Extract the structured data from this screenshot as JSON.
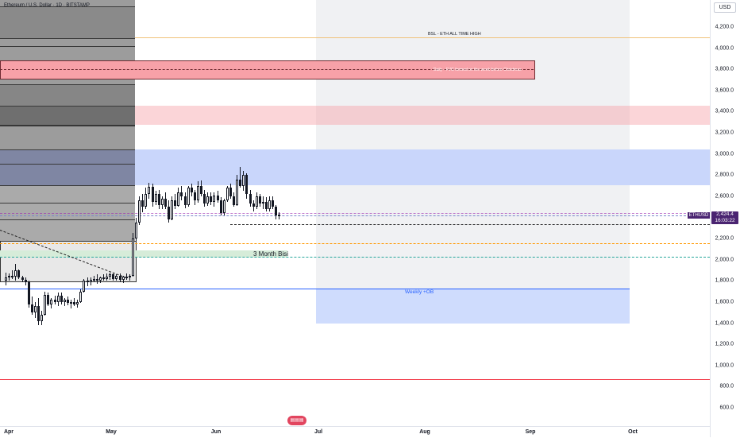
{
  "header": {
    "title": "Ethereum / U.S. Dollar · 1D · BITSTAMP"
  },
  "price_axis": {
    "currency_label": "USD",
    "ticks": [
      "4,200.0",
      "4,000.0",
      "3,800.0",
      "3,600.0",
      "3,400.0",
      "3,200.0",
      "3,000.0",
      "2,800.0",
      "2,600.0",
      "2,400.0",
      "2,200.0",
      "2,000.0",
      "1,800.0",
      "1,600.0",
      "1,400.0",
      "1,200.0",
      "1,000.0",
      "800.0",
      "600.0"
    ]
  },
  "time_axis": {
    "labels": [
      "Apr",
      "May",
      "Jun",
      "Jul",
      "Aug",
      "Sep",
      "Oct"
    ]
  },
  "current_price": {
    "symbol": "ETHUSD",
    "price": "2,424.4",
    "countdown": "16:03:22",
    "color": "#4a2471"
  },
  "annotations": {
    "bsl_label": "BSL - ETH ALL TIME HIGH",
    "daily_fvg_label": "Daily - FVG formed on the week before Christmas",
    "three_month_label": "3 Month Bisi",
    "weekly_ob_label": "Weekly +OB"
  },
  "colors": {
    "bull_candle": "#ffffff",
    "bear_candle": "#131722",
    "daily_fvg": "#f7a1a8",
    "blue_zone": "#c9d6fb",
    "weekly_ob": "#cfdcfd",
    "bisi_zone": "#d6ecd9",
    "red_line": "#f23645",
    "orange_dash": "#ff9800",
    "teal_dash": "#26a69a"
  },
  "logo": {
    "icon": "tradingview-logo-icon"
  },
  "chart_data": {
    "type": "candlestick",
    "title": "Ethereum / U.S. Dollar · 1D · BITSTAMP",
    "ylim": [
      500,
      4400
    ],
    "y_unit": "USD",
    "x": [
      "Apr",
      "May",
      "Jun",
      "Jul",
      "Aug",
      "Sep",
      "Oct"
    ],
    "last_price": 2424.4,
    "levels": [
      {
        "name": "BSL - ETH ALL TIME HIGH",
        "price": 4100
      },
      {
        "name": "3 Month Bisi",
        "price": 2060
      },
      {
        "name": "Weekly +OB",
        "price": [
          1400,
          1730
        ]
      },
      {
        "name": "Daily - FVG formed on the week before Christmas",
        "price": [
          3720,
          3880
        ]
      }
    ],
    "candles_ohlc_daily": [
      [
        1800,
        1880,
        1760,
        1830
      ],
      [
        1830,
        1870,
        1800,
        1850
      ],
      [
        1850,
        1900,
        1820,
        1840
      ],
      [
        1840,
        1960,
        1800,
        1900
      ],
      [
        1900,
        1910,
        1820,
        1830
      ],
      [
        1830,
        1850,
        1790,
        1810
      ],
      [
        1810,
        1830,
        1760,
        1790
      ],
      [
        1790,
        1800,
        1550,
        1580
      ],
      [
        1580,
        1650,
        1480,
        1500
      ],
      [
        1500,
        1600,
        1450,
        1560
      ],
      [
        1560,
        1640,
        1380,
        1420
      ],
      [
        1420,
        1520,
        1380,
        1480
      ],
      [
        1480,
        1700,
        1470,
        1670
      ],
      [
        1670,
        1690,
        1560,
        1580
      ],
      [
        1580,
        1640,
        1540,
        1620
      ],
      [
        1620,
        1660,
        1580,
        1600
      ],
      [
        1600,
        1690,
        1560,
        1660
      ],
      [
        1660,
        1690,
        1580,
        1600
      ],
      [
        1600,
        1640,
        1560,
        1620
      ],
      [
        1620,
        1650,
        1570,
        1590
      ],
      [
        1590,
        1620,
        1540,
        1600
      ],
      [
        1600,
        1640,
        1560,
        1580
      ],
      [
        1580,
        1620,
        1550,
        1600
      ],
      [
        1600,
        1720,
        1590,
        1700
      ],
      [
        1700,
        1820,
        1690,
        1800
      ],
      [
        1800,
        1830,
        1750,
        1790
      ],
      [
        1790,
        1830,
        1760,
        1810
      ],
      [
        1810,
        1850,
        1790,
        1820
      ],
      [
        1820,
        1860,
        1770,
        1800
      ],
      [
        1800,
        1840,
        1780,
        1830
      ],
      [
        1830,
        1860,
        1800,
        1820
      ],
      [
        1820,
        1870,
        1800,
        1840
      ],
      [
        1840,
        1880,
        1810,
        1860
      ],
      [
        1860,
        1870,
        1800,
        1820
      ],
      [
        1820,
        1860,
        1800,
        1850
      ],
      [
        1850,
        1870,
        1790,
        1810
      ],
      [
        1810,
        1850,
        1780,
        1840
      ],
      [
        1840,
        1870,
        1810,
        1830
      ],
      [
        1830,
        1860,
        1800,
        1850
      ],
      [
        1850,
        2250,
        1840,
        2200
      ],
      [
        2200,
        2400,
        2180,
        2350
      ],
      [
        2350,
        2600,
        2330,
        2560
      ],
      [
        2560,
        2620,
        2450,
        2500
      ],
      [
        2500,
        2680,
        2480,
        2620
      ],
      [
        2620,
        2730,
        2580,
        2690
      ],
      [
        2690,
        2720,
        2500,
        2550
      ],
      [
        2550,
        2650,
        2520,
        2620
      ],
      [
        2620,
        2660,
        2480,
        2520
      ],
      [
        2520,
        2600,
        2480,
        2580
      ],
      [
        2580,
        2640,
        2480,
        2500
      ],
      [
        2500,
        2560,
        2350,
        2380
      ],
      [
        2380,
        2600,
        2370,
        2560
      ],
      [
        2560,
        2620,
        2480,
        2510
      ],
      [
        2510,
        2680,
        2500,
        2640
      ],
      [
        2640,
        2700,
        2560,
        2600
      ],
      [
        2600,
        2640,
        2490,
        2520
      ],
      [
        2520,
        2700,
        2500,
        2680
      ],
      [
        2680,
        2720,
        2600,
        2640
      ],
      [
        2640,
        2660,
        2520,
        2560
      ],
      [
        2560,
        2740,
        2540,
        2700
      ],
      [
        2700,
        2750,
        2600,
        2620
      ],
      [
        2620,
        2660,
        2500,
        2530
      ],
      [
        2530,
        2640,
        2510,
        2600
      ],
      [
        2600,
        2640,
        2520,
        2550
      ],
      [
        2550,
        2640,
        2500,
        2610
      ],
      [
        2610,
        2650,
        2540,
        2560
      ],
      [
        2560,
        2590,
        2420,
        2440
      ],
      [
        2440,
        2580,
        2420,
        2560
      ],
      [
        2560,
        2700,
        2550,
        2680
      ],
      [
        2680,
        2720,
        2580,
        2600
      ],
      [
        2600,
        2640,
        2500,
        2520
      ],
      [
        2520,
        2800,
        2510,
        2760
      ],
      [
        2760,
        2880,
        2680,
        2700
      ],
      [
        2700,
        2840,
        2650,
        2800
      ],
      [
        2800,
        2820,
        2580,
        2620
      ],
      [
        2620,
        2660,
        2500,
        2530
      ],
      [
        2530,
        2560,
        2460,
        2500
      ],
      [
        2500,
        2640,
        2480,
        2600
      ],
      [
        2600,
        2620,
        2500,
        2530
      ],
      [
        2530,
        2600,
        2480,
        2550
      ],
      [
        2550,
        2590,
        2460,
        2480
      ],
      [
        2480,
        2600,
        2460,
        2560
      ],
      [
        2560,
        2600,
        2480,
        2500
      ],
      [
        2500,
        2520,
        2380,
        2420
      ],
      [
        2420,
        2450,
        2380,
        2424.4
      ]
    ]
  }
}
